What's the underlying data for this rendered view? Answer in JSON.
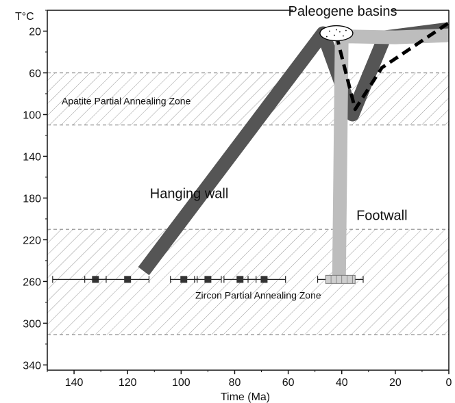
{
  "chart_data": {
    "type": "line",
    "xlabel": "Time (Ma)",
    "ylabel": "T°C",
    "xlim": [
      150,
      0
    ],
    "ylim": [
      345,
      0
    ],
    "x_ticks": [
      140,
      120,
      100,
      80,
      60,
      40,
      20,
      0
    ],
    "y_ticks": [
      20,
      60,
      100,
      140,
      180,
      220,
      260,
      300,
      340
    ],
    "colors": {
      "hanging_wall": "#555555",
      "footwall": "#bdbdbd",
      "zone_hatch": "#9a9a9a",
      "axis": "#111111"
    },
    "zones": [
      {
        "label": "Apatite Partial Annealing Zone",
        "t_min": 60,
        "t_max": 110
      },
      {
        "label": "Zircon Partial Annealing Zone",
        "t_min": 210,
        "t_max": 311
      }
    ],
    "paths": [
      {
        "name": "Hanging wall",
        "label": "Hanging wall",
        "style": "band-dark",
        "points": [
          [
            114,
            250
          ],
          [
            47,
            22
          ],
          [
            36,
            100
          ],
          [
            24,
            26
          ],
          [
            0,
            18
          ]
        ]
      },
      {
        "name": "Footwall",
        "label": "Footwall",
        "style": "band-light",
        "points": [
          [
            41,
            255
          ],
          [
            40,
            25
          ],
          [
            20,
            26
          ],
          [
            0,
            24
          ]
        ]
      },
      {
        "name": "Paleogene basins path",
        "style": "dashed",
        "points": [
          [
            42,
            24
          ],
          [
            35,
            95
          ],
          [
            25,
            55
          ],
          [
            0,
            12
          ]
        ]
      }
    ],
    "basins_label": "Paleogene basins",
    "basins_ellipse": {
      "x": 42,
      "y": 22
    },
    "zircon_ages": [
      {
        "age": 132,
        "err_low": 136,
        "err_high": 128
      },
      {
        "age": 120,
        "err_low": 148,
        "err_high": 112
      },
      {
        "age": 99,
        "err_low": 104,
        "err_high": 94
      },
      {
        "age": 90,
        "err_low": 95,
        "err_high": 85
      },
      {
        "age": 78,
        "err_low": 84,
        "err_high": 72
      },
      {
        "age": 69,
        "err_low": 75,
        "err_high": 61
      }
    ],
    "footwall_ages": {
      "from": 46,
      "to": 35,
      "y": 258
    }
  }
}
